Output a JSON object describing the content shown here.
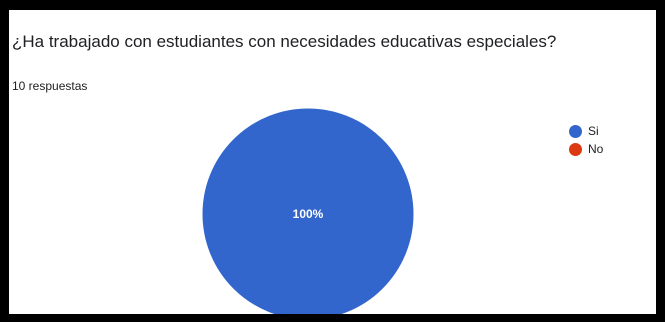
{
  "card": {
    "title": "¿Ha trabajado con estudiantes con necesidades educativas especiales?",
    "response_count": "10 respuestas"
  },
  "colors": {
    "si": "#3366cc",
    "no": "#dc3912"
  },
  "chart_data": {
    "type": "pie",
    "categories": [
      "Si",
      "No"
    ],
    "values": [
      100,
      0
    ],
    "value_labels": [
      "100%",
      ""
    ],
    "legend": [
      "Si",
      "No"
    ],
    "legend_position": "right"
  }
}
